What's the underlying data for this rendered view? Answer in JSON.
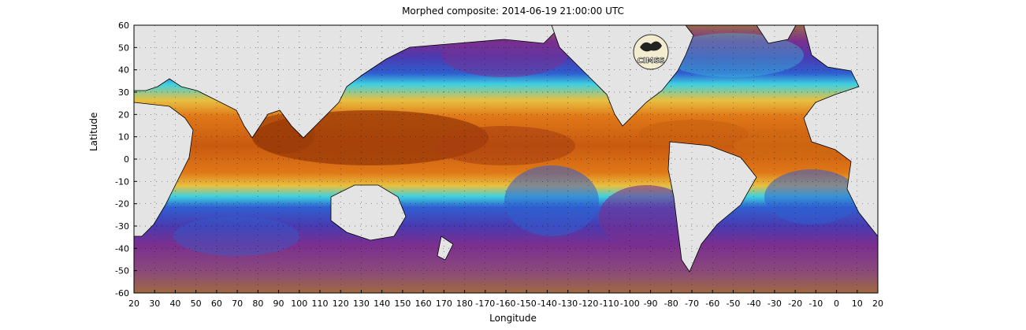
{
  "title": "Morphed composite: 2014-06-19 21:00:00 UTC",
  "xlabel": "Longitude",
  "ylabel": "Latitude",
  "logo_text": "CIMSS",
  "x_ticks": [
    "20",
    "30",
    "40",
    "50",
    "60",
    "70",
    "80",
    "90",
    "100",
    "110",
    "120",
    "130",
    "140",
    "150",
    "160",
    "170",
    "180",
    "-170",
    "-160",
    "-150",
    "-140",
    "-130",
    "-120",
    "-110",
    "-100",
    "-90",
    "-80",
    "-70",
    "-60",
    "-50",
    "-40",
    "-30",
    "-20",
    "-10",
    "0",
    "10",
    "20"
  ],
  "y_ticks": [
    "60",
    "50",
    "40",
    "30",
    "20",
    "10",
    "0",
    "-10",
    "-20",
    "-30",
    "-40",
    "-50",
    "-60"
  ],
  "colors": {
    "land": "#e4e4e4",
    "coast": "#000000",
    "dry": "#7a2f8f",
    "low": "#2f5fd0",
    "mid": "#3fd0e0",
    "moist": "#e8c040",
    "wet": "#e07818",
    "wettest": "#9a3a08",
    "ocean_far": "#a06840"
  }
}
